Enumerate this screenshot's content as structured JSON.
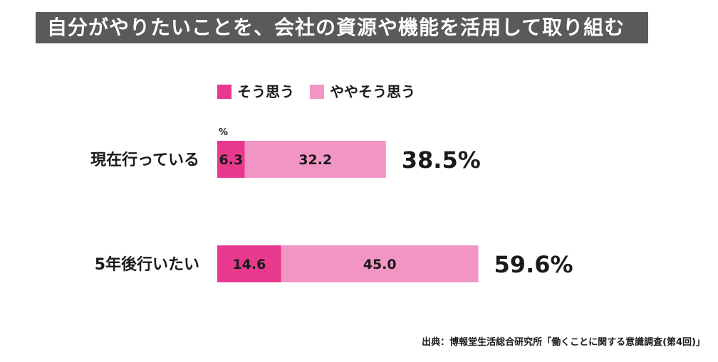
{
  "title": "自分がやりたいことを、会社の資源や機能を活用して取り組む",
  "source": "出典：博報堂生活総合研究所「働くことに関する意識調査(第4回)」",
  "colors": {
    "title_bg": "#5a5a5a",
    "strong": "#e8398f",
    "weak": "#f195c4"
  },
  "chart_data": {
    "type": "bar",
    "orientation": "horizontal",
    "stacked": true,
    "unit_label": "%",
    "categories": [
      "現在行っている",
      "5年後行いたい"
    ],
    "series": [
      {
        "name": "そう思う",
        "values": [
          6.3,
          14.6
        ],
        "labels": [
          "6.3",
          "14.6"
        ]
      },
      {
        "name": "ややそう思う",
        "values": [
          32.2,
          45.0
        ],
        "labels": [
          "32.2",
          "45.0"
        ]
      }
    ],
    "totals": [
      "38.5%",
      "59.6%"
    ],
    "legend": "top",
    "grid": false
  }
}
